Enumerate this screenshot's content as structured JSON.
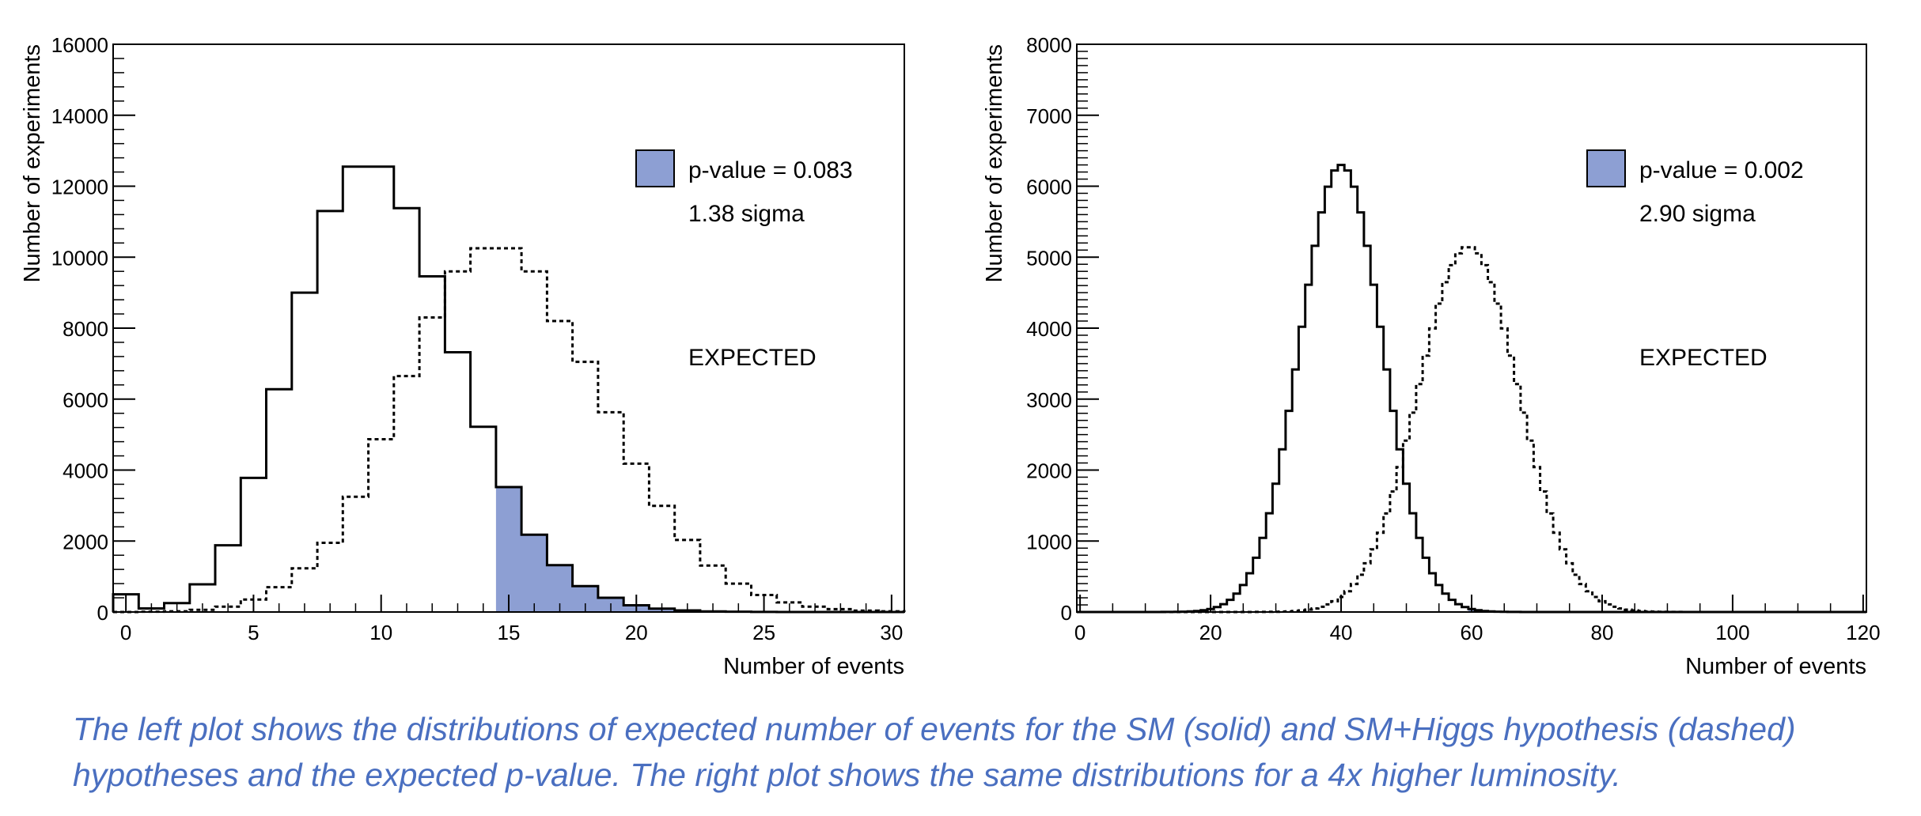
{
  "colors": {
    "fill": "#8d9fd3",
    "axis": "#000000",
    "caption": "#4a6fc0"
  },
  "chart_data": [
    {
      "type": "bar",
      "xlabel": "Number of events",
      "ylabel": "Number of experiments",
      "xlim": [
        -0.5,
        30.5
      ],
      "ylim": [
        0,
        16000
      ],
      "xticks": [
        0,
        5,
        10,
        15,
        20,
        25,
        30
      ],
      "yticks": [
        0,
        2000,
        4000,
        6000,
        8000,
        10000,
        12000,
        14000,
        16000
      ],
      "legend": {
        "label": "p-value = 0.083",
        "sigma": "1.38 sigma",
        "position": "top-right"
      },
      "annotation": "EXPECTED",
      "bin_width": 1,
      "series": [
        {
          "name": "SM (solid)",
          "style": "solid",
          "x0": -0.5,
          "values": [
            500,
            100,
            250,
            780,
            1880,
            3780,
            6280,
            9000,
            11300,
            12550,
            12550,
            11380,
            9460,
            7320,
            5220,
            3520,
            2180,
            1320,
            730,
            400,
            190,
            95,
            45,
            18,
            8,
            3,
            1,
            0,
            0,
            0,
            0
          ]
        },
        {
          "name": "SM+Higgs (dashed)",
          "style": "dashed",
          "x0": -0.5,
          "values": [
            0,
            10,
            20,
            60,
            150,
            350,
            700,
            1230,
            1950,
            3250,
            4870,
            6650,
            8300,
            9600,
            10250,
            10250,
            9600,
            8200,
            7050,
            5630,
            4180,
            2990,
            2030,
            1310,
            800,
            480,
            270,
            150,
            80,
            40,
            20
          ]
        }
      ],
      "shaded": {
        "from": 14.5,
        "to": 30.5,
        "series": "SM (solid)"
      }
    },
    {
      "type": "bar",
      "xlabel": "Number of events",
      "ylabel": "Number of experiments",
      "xlim": [
        -0.5,
        120.5
      ],
      "ylim": [
        0,
        8000
      ],
      "xticks": [
        0,
        20,
        40,
        60,
        80,
        100,
        120
      ],
      "yticks": [
        0,
        1000,
        2000,
        3000,
        4000,
        5000,
        6000,
        7000,
        8000
      ],
      "legend": {
        "label": "p-value = 0.002",
        "sigma": "2.90 sigma",
        "position": "top-right"
      },
      "annotation": "EXPECTED",
      "series": [
        {
          "name": "SM (solid)",
          "style": "solid",
          "mean": 40,
          "sigma": 6.33,
          "peak": 6300
        },
        {
          "name": "SM+Higgs (dashed)",
          "style": "dashed",
          "mean": 59.5,
          "sigma": 7.72,
          "peak": 5150
        }
      ],
      "shaded": {
        "from": 59.5,
        "to": 120.5,
        "series": "SM (solid)"
      }
    }
  ],
  "caption": {
    "line1": "The left plot shows the distributions of expected number of events for the SM (solid) and SM+Higgs hypothesis (dashed)",
    "line2": "hypotheses and the expected p-value. The right plot shows the same distributions for a 4x higher luminosity."
  }
}
